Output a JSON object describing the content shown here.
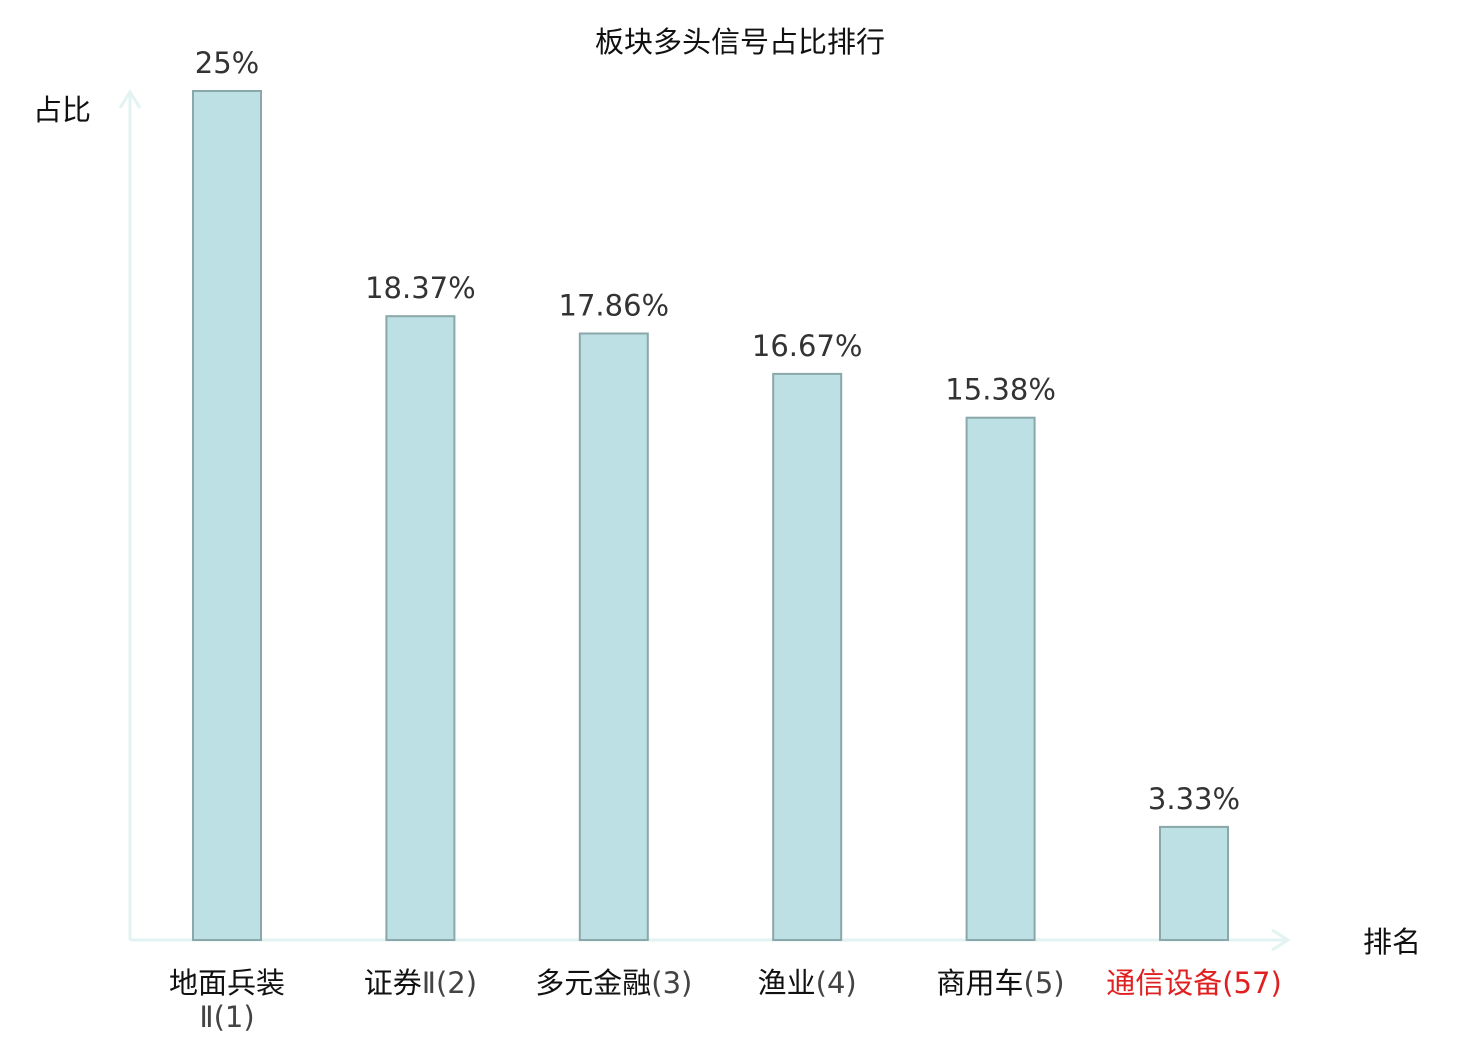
{
  "chart_data": {
    "type": "bar",
    "title": "板块多头信号占比排行",
    "xlabel": "排名",
    "ylabel": "占比",
    "ylim": [
      0,
      25
    ],
    "grid": false,
    "categories": [
      {
        "name": "地面兵装",
        "rank": "Ⅱ(1)",
        "highlight": false
      },
      {
        "name": "证券",
        "rank": "Ⅱ(2)",
        "highlight": false
      },
      {
        "name": "多元金融",
        "rank": "(3)",
        "highlight": false
      },
      {
        "name": "渔业",
        "rank": "(4)",
        "highlight": false
      },
      {
        "name": "商用车",
        "rank": "(5)",
        "highlight": false
      },
      {
        "name": "通信设备",
        "rank": "(57)",
        "highlight": true
      }
    ],
    "values": [
      25,
      18.37,
      17.86,
      16.67,
      15.38,
      3.33
    ],
    "value_labels": [
      "25%",
      "18.37%",
      "17.86%",
      "16.67%",
      "15.38%",
      "3.33%"
    ]
  },
  "colors": {
    "bar_fill": "#bce0e3",
    "bar_stroke": "#8aa7a9",
    "axis": "#e2f3f1",
    "text": "#111111",
    "value_text": "#333333",
    "rank_text": "#444444",
    "highlight": "#e02020"
  }
}
